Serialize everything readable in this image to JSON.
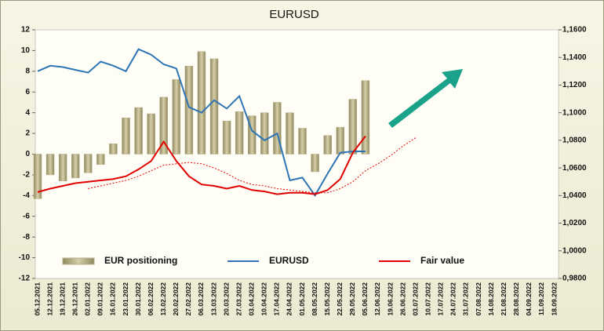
{
  "chart_data": {
    "type": "bar",
    "title": "EURUSD",
    "categories": [
      "05.12.2021",
      "12.12.2021",
      "19.12.2021",
      "26.12.2021",
      "02.01.2022",
      "09.01.2022",
      "16.01.2022",
      "23.01.2022",
      "30.01.2022",
      "06.02.2022",
      "13.02.2022",
      "20.02.2022",
      "27.02.2022",
      "06.03.2022",
      "13.03.2022",
      "20.03.2022",
      "27.03.2022",
      "03.04.2022",
      "10.04.2022",
      "17.04.2022",
      "24.04.2022",
      "01.05.2022",
      "08.05.2022",
      "15.05.2022",
      "22.05.2022",
      "29.05.2022",
      "05.06.2022",
      "12.06.2022",
      "19.06.2022",
      "26.06.2022",
      "03.07.2022",
      "10.07.2022",
      "17.07.2022",
      "24.07.2022",
      "31.07.2022",
      "07.08.2022",
      "14.08.2022",
      "21.08.2022",
      "28.08.2022",
      "04.09.2022",
      "11.09.2022",
      "18.09.2022"
    ],
    "series": [
      {
        "name": "EUR positioning",
        "type": "bar",
        "color": "#b8b08a",
        "values": [
          -4.3,
          -2,
          -2.6,
          -2.3,
          -1.8,
          -1,
          1,
          3.5,
          4.5,
          3.9,
          5.5,
          7.2,
          8.5,
          9.9,
          9.2,
          3.2,
          4.1,
          3.7,
          4,
          5,
          4,
          2.5,
          -1.7,
          1.8,
          2.6,
          5.3,
          7.1,
          null,
          null,
          null,
          null,
          null,
          null,
          null,
          null,
          null,
          null,
          null,
          null,
          null,
          null,
          null
        ]
      },
      {
        "name": "EURUSD",
        "type": "line",
        "axis": "y2",
        "color": "#2e75b6",
        "values": [
          1.13,
          1.134,
          1.133,
          1.131,
          1.129,
          1.137,
          1.134,
          1.13,
          1.146,
          1.142,
          1.135,
          1.132,
          1.104,
          1.1,
          1.109,
          1.103,
          1.112,
          1.087,
          1.08,
          1.085,
          1.051,
          1.053,
          1.04,
          1.056,
          1.071,
          1.072,
          1.072,
          null,
          null,
          null,
          null,
          null,
          null,
          null,
          null,
          null,
          null,
          null,
          null,
          null,
          null,
          null
        ]
      },
      {
        "name": "Fair value",
        "type": "line",
        "axis": "y2",
        "color": "#e00000",
        "values": [
          1.0425,
          1.045,
          1.047,
          1.049,
          1.05,
          1.051,
          1.052,
          1.054,
          1.059,
          1.065,
          1.079,
          1.065,
          1.054,
          1.048,
          1.047,
          1.045,
          1.047,
          1.044,
          1.043,
          1.041,
          1.042,
          1.042,
          1.041,
          1.044,
          1.052,
          1.071,
          1.083,
          null,
          null,
          null,
          null,
          null,
          null,
          null,
          null,
          null,
          null,
          null,
          null,
          null,
          null,
          null
        ]
      },
      {
        "type": "line",
        "axis": "y2",
        "color": "#e00000",
        "style": "dotted",
        "values": [
          null,
          null,
          null,
          null,
          1.045,
          1.047,
          1.049,
          1.051,
          1.054,
          1.058,
          1.062,
          1.063,
          1.064,
          1.063,
          1.06,
          1.056,
          1.051,
          1.048,
          1.047,
          1.045,
          1.044,
          1.043,
          1.042,
          1.042,
          1.045,
          1.05,
          1.058,
          1.063,
          1.069,
          1.076,
          1.082,
          null,
          null,
          null,
          null,
          null,
          null,
          null,
          null,
          null,
          null,
          null
        ]
      }
    ],
    "ylim": [
      -12,
      12
    ],
    "yticks": [
      -12,
      -10,
      -8,
      -6,
      -4,
      -2,
      0,
      2,
      4,
      6,
      8,
      10,
      12
    ],
    "y2lim": [
      0.98,
      1.16
    ],
    "y2ticks": [
      {
        "value": 0.98,
        "label": "0,9800"
      },
      {
        "value": 1.0,
        "label": "1,0000"
      },
      {
        "value": 1.02,
        "label": "1,0200"
      },
      {
        "value": 1.04,
        "label": "1,0400"
      },
      {
        "value": 1.06,
        "label": "1,0600"
      },
      {
        "value": 1.08,
        "label": "1,0800"
      },
      {
        "value": 1.1,
        "label": "1,1000"
      },
      {
        "value": 1.12,
        "label": "1,1200"
      },
      {
        "value": 1.14,
        "label": "1,1400"
      },
      {
        "value": 1.16,
        "label": "1,1600"
      }
    ],
    "grid": false,
    "legend": "lower left"
  }
}
